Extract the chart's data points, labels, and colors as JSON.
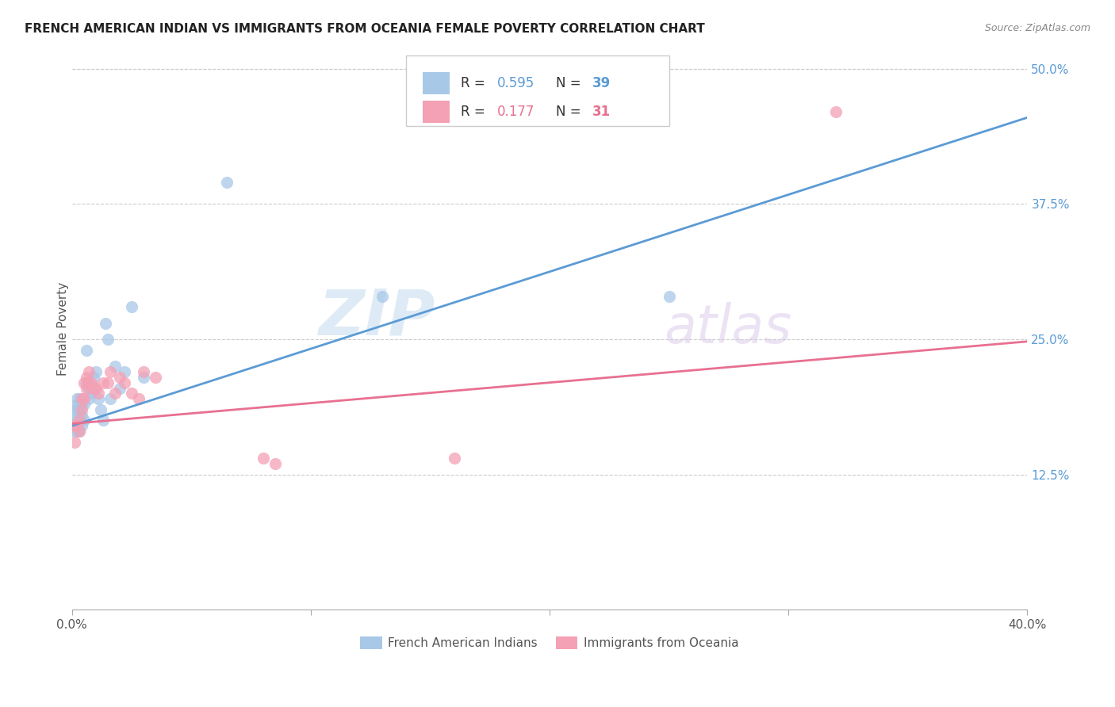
{
  "title": "FRENCH AMERICAN INDIAN VS IMMIGRANTS FROM OCEANIA FEMALE POVERTY CORRELATION CHART",
  "source": "Source: ZipAtlas.com",
  "ylabel": "Female Poverty",
  "ytick_labels": [
    "12.5%",
    "25.0%",
    "37.5%",
    "50.0%"
  ],
  "ytick_values": [
    0.125,
    0.25,
    0.375,
    0.5
  ],
  "xlim": [
    0.0,
    0.4
  ],
  "ylim": [
    0.0,
    0.52
  ],
  "legend_r1": "0.595",
  "legend_n1": "39",
  "legend_r2": "0.177",
  "legend_n2": "31",
  "color_blue": "#a8c8e8",
  "color_pink": "#f4a0b5",
  "color_blue_dark": "#5b9bd5",
  "color_pink_dark": "#e87090",
  "color_right_axis": "#5b9bd5",
  "watermark_zip": "ZIP",
  "watermark_atlas": "atlas",
  "blue_scatter_x": [
    0.001,
    0.001,
    0.001,
    0.002,
    0.002,
    0.002,
    0.002,
    0.002,
    0.003,
    0.003,
    0.003,
    0.003,
    0.004,
    0.004,
    0.004,
    0.005,
    0.005,
    0.006,
    0.006,
    0.007,
    0.007,
    0.008,
    0.008,
    0.009,
    0.01,
    0.011,
    0.012,
    0.013,
    0.014,
    0.015,
    0.016,
    0.018,
    0.02,
    0.022,
    0.025,
    0.03,
    0.065,
    0.13,
    0.25
  ],
  "blue_scatter_y": [
    0.185,
    0.175,
    0.165,
    0.195,
    0.19,
    0.185,
    0.175,
    0.165,
    0.195,
    0.185,
    0.175,
    0.165,
    0.19,
    0.18,
    0.17,
    0.19,
    0.175,
    0.24,
    0.21,
    0.205,
    0.195,
    0.205,
    0.2,
    0.215,
    0.22,
    0.195,
    0.185,
    0.175,
    0.265,
    0.25,
    0.195,
    0.225,
    0.205,
    0.22,
    0.28,
    0.215,
    0.395,
    0.29,
    0.29
  ],
  "pink_scatter_x": [
    0.001,
    0.001,
    0.002,
    0.003,
    0.003,
    0.004,
    0.004,
    0.005,
    0.005,
    0.006,
    0.006,
    0.007,
    0.007,
    0.008,
    0.009,
    0.01,
    0.011,
    0.013,
    0.015,
    0.016,
    0.018,
    0.02,
    0.022,
    0.025,
    0.028,
    0.03,
    0.035,
    0.08,
    0.085,
    0.16,
    0.32
  ],
  "pink_scatter_y": [
    0.17,
    0.155,
    0.17,
    0.175,
    0.165,
    0.195,
    0.185,
    0.21,
    0.195,
    0.215,
    0.205,
    0.22,
    0.21,
    0.21,
    0.205,
    0.205,
    0.2,
    0.21,
    0.21,
    0.22,
    0.2,
    0.215,
    0.21,
    0.2,
    0.195,
    0.22,
    0.215,
    0.14,
    0.135,
    0.14,
    0.46
  ],
  "blue_line_x": [
    0.0,
    0.4
  ],
  "blue_line_y": [
    0.17,
    0.455
  ],
  "pink_line_x": [
    0.0,
    0.4
  ],
  "pink_line_y": [
    0.172,
    0.248
  ]
}
